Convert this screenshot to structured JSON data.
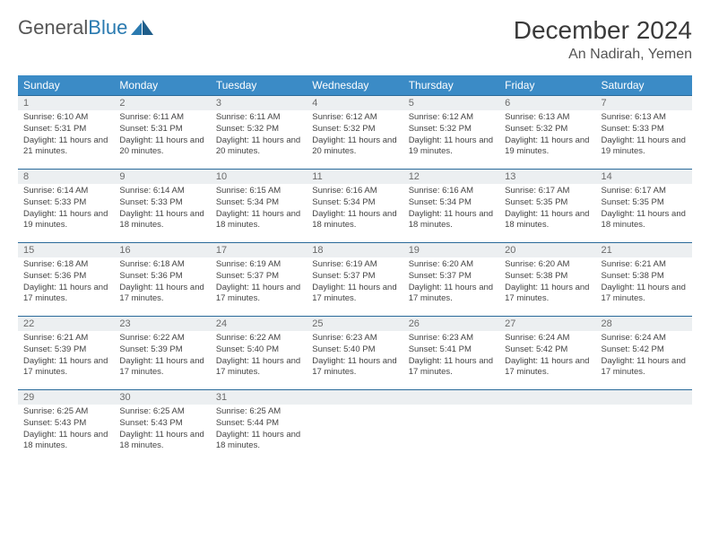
{
  "logo": {
    "text1": "General",
    "text2": "Blue"
  },
  "title": "December 2024",
  "location": "An Nadirah, Yemen",
  "colors": {
    "header_bg": "#3b8bc6",
    "header_text": "#ffffff",
    "daynum_bg": "#eceff1",
    "border": "#2a6a9a",
    "logo_gray": "#565656",
    "logo_blue": "#2a7ab0"
  },
  "weekdays": [
    "Sunday",
    "Monday",
    "Tuesday",
    "Wednesday",
    "Thursday",
    "Friday",
    "Saturday"
  ],
  "days": [
    {
      "n": "1",
      "sr": "6:10 AM",
      "ss": "5:31 PM",
      "dl": "11 hours and 21 minutes."
    },
    {
      "n": "2",
      "sr": "6:11 AM",
      "ss": "5:31 PM",
      "dl": "11 hours and 20 minutes."
    },
    {
      "n": "3",
      "sr": "6:11 AM",
      "ss": "5:32 PM",
      "dl": "11 hours and 20 minutes."
    },
    {
      "n": "4",
      "sr": "6:12 AM",
      "ss": "5:32 PM",
      "dl": "11 hours and 20 minutes."
    },
    {
      "n": "5",
      "sr": "6:12 AM",
      "ss": "5:32 PM",
      "dl": "11 hours and 19 minutes."
    },
    {
      "n": "6",
      "sr": "6:13 AM",
      "ss": "5:32 PM",
      "dl": "11 hours and 19 minutes."
    },
    {
      "n": "7",
      "sr": "6:13 AM",
      "ss": "5:33 PM",
      "dl": "11 hours and 19 minutes."
    },
    {
      "n": "8",
      "sr": "6:14 AM",
      "ss": "5:33 PM",
      "dl": "11 hours and 19 minutes."
    },
    {
      "n": "9",
      "sr": "6:14 AM",
      "ss": "5:33 PM",
      "dl": "11 hours and 18 minutes."
    },
    {
      "n": "10",
      "sr": "6:15 AM",
      "ss": "5:34 PM",
      "dl": "11 hours and 18 minutes."
    },
    {
      "n": "11",
      "sr": "6:16 AM",
      "ss": "5:34 PM",
      "dl": "11 hours and 18 minutes."
    },
    {
      "n": "12",
      "sr": "6:16 AM",
      "ss": "5:34 PM",
      "dl": "11 hours and 18 minutes."
    },
    {
      "n": "13",
      "sr": "6:17 AM",
      "ss": "5:35 PM",
      "dl": "11 hours and 18 minutes."
    },
    {
      "n": "14",
      "sr": "6:17 AM",
      "ss": "5:35 PM",
      "dl": "11 hours and 18 minutes."
    },
    {
      "n": "15",
      "sr": "6:18 AM",
      "ss": "5:36 PM",
      "dl": "11 hours and 17 minutes."
    },
    {
      "n": "16",
      "sr": "6:18 AM",
      "ss": "5:36 PM",
      "dl": "11 hours and 17 minutes."
    },
    {
      "n": "17",
      "sr": "6:19 AM",
      "ss": "5:37 PM",
      "dl": "11 hours and 17 minutes."
    },
    {
      "n": "18",
      "sr": "6:19 AM",
      "ss": "5:37 PM",
      "dl": "11 hours and 17 minutes."
    },
    {
      "n": "19",
      "sr": "6:20 AM",
      "ss": "5:37 PM",
      "dl": "11 hours and 17 minutes."
    },
    {
      "n": "20",
      "sr": "6:20 AM",
      "ss": "5:38 PM",
      "dl": "11 hours and 17 minutes."
    },
    {
      "n": "21",
      "sr": "6:21 AM",
      "ss": "5:38 PM",
      "dl": "11 hours and 17 minutes."
    },
    {
      "n": "22",
      "sr": "6:21 AM",
      "ss": "5:39 PM",
      "dl": "11 hours and 17 minutes."
    },
    {
      "n": "23",
      "sr": "6:22 AM",
      "ss": "5:39 PM",
      "dl": "11 hours and 17 minutes."
    },
    {
      "n": "24",
      "sr": "6:22 AM",
      "ss": "5:40 PM",
      "dl": "11 hours and 17 minutes."
    },
    {
      "n": "25",
      "sr": "6:23 AM",
      "ss": "5:40 PM",
      "dl": "11 hours and 17 minutes."
    },
    {
      "n": "26",
      "sr": "6:23 AM",
      "ss": "5:41 PM",
      "dl": "11 hours and 17 minutes."
    },
    {
      "n": "27",
      "sr": "6:24 AM",
      "ss": "5:42 PM",
      "dl": "11 hours and 17 minutes."
    },
    {
      "n": "28",
      "sr": "6:24 AM",
      "ss": "5:42 PM",
      "dl": "11 hours and 17 minutes."
    },
    {
      "n": "29",
      "sr": "6:25 AM",
      "ss": "5:43 PM",
      "dl": "11 hours and 18 minutes."
    },
    {
      "n": "30",
      "sr": "6:25 AM",
      "ss": "5:43 PM",
      "dl": "11 hours and 18 minutes."
    },
    {
      "n": "31",
      "sr": "6:25 AM",
      "ss": "5:44 PM",
      "dl": "11 hours and 18 minutes."
    }
  ],
  "labels": {
    "sunrise": "Sunrise:",
    "sunset": "Sunset:",
    "daylight": "Daylight:"
  }
}
